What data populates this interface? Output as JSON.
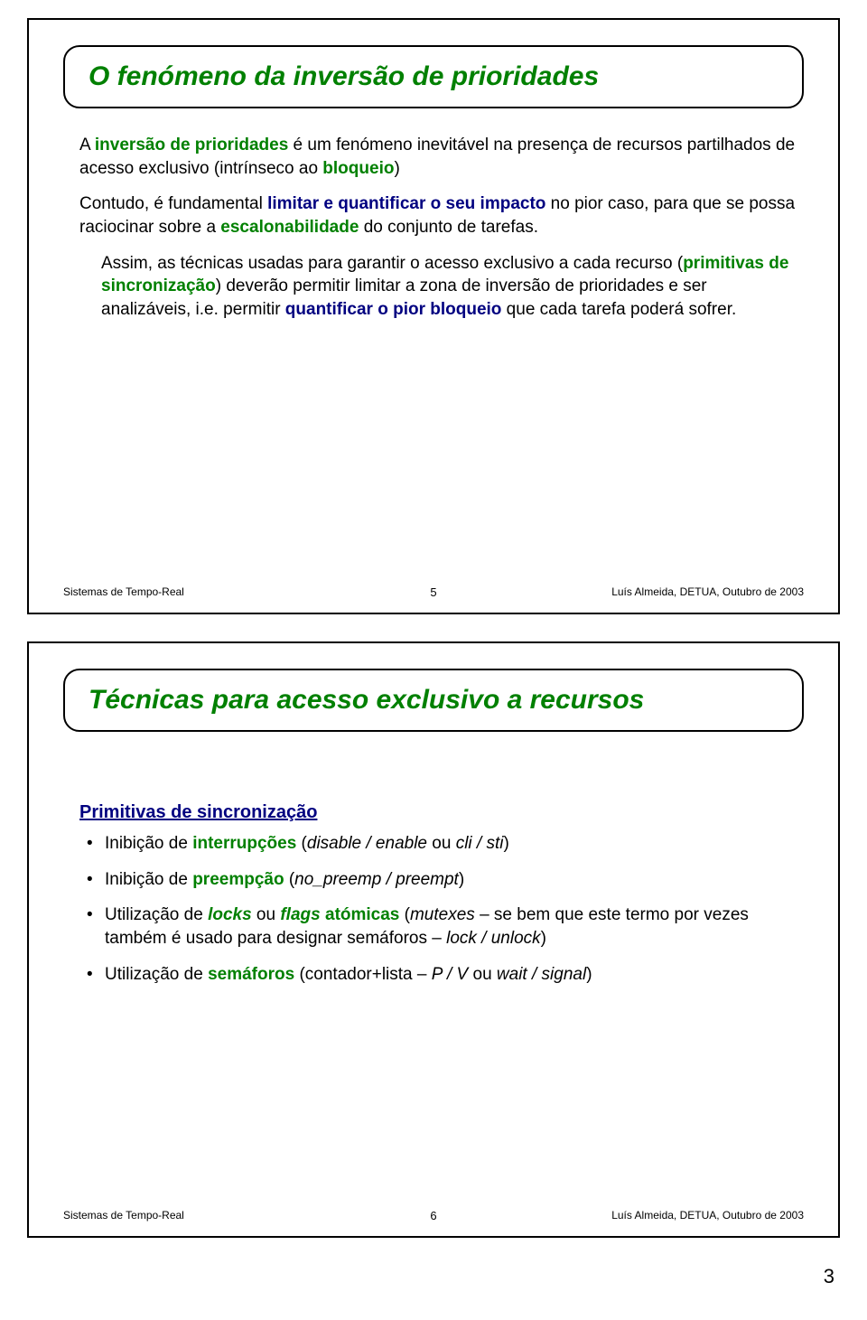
{
  "page_number": "3",
  "footer": {
    "left": "Sistemas de Tempo-Real",
    "right": "Luís Almeida, DETUA, Outubro de 2003"
  },
  "slide1": {
    "title": "O fenómeno da inversão de prioridades",
    "page": "5",
    "p1a": "A ",
    "p1b": "inversão de prioridades",
    "p1c": " é um fenómeno inevitável na presença de recursos partilhados de acesso exclusivo (intrínseco ao ",
    "p1d": "bloqueio",
    "p1e": ")",
    "p2a": "Contudo, é fundamental ",
    "p2b": "limitar e quantificar o seu impacto",
    "p2c": " no pior caso, para que se possa raciocinar sobre a ",
    "p2d": "escalonabilidade",
    "p2e": " do conjunto de tarefas.",
    "p3a": "Assim, as técnicas usadas para garantir o acesso exclusivo a cada recurso (",
    "p3b": "primitivas de sincronização",
    "p3c": ") deverão permitir limitar a zona de inversão de prioridades e ser analizáveis, i.e. permitir ",
    "p3d": "quantificar o pior bloqueio",
    "p3e": " que cada tarefa poderá sofrer."
  },
  "slide2": {
    "title": "Técnicas para acesso exclusivo a recursos",
    "page": "6",
    "subhead": "Primitivas de sincronização",
    "b1a": "Inibição de ",
    "b1b": "interrupções",
    "b1c": " (",
    "b1d": "disable / enable",
    "b1e": " ou ",
    "b1f": "cli / sti",
    "b1g": ")",
    "b2a": "Inibição de ",
    "b2b": "preempção",
    "b2c": " (",
    "b2d": "no_preemp / preempt",
    "b2e": ")",
    "b3a": "Utilização de ",
    "b3b": "locks",
    "b3c": " ou ",
    "b3d": "flags",
    "b3e": " atómicas",
    "b3f": " (",
    "b3g": "mutexes",
    "b3h": " – se bem que este termo por vezes também é usado para designar semáforos – ",
    "b3i": "lock / unlock",
    "b3j": ")",
    "b4a": "Utilização de ",
    "b4b": "semáforos",
    "b4c": " (contador+lista – ",
    "b4d": "P / V",
    "b4e": " ou ",
    "b4f": "wait / signal",
    "b4g": ")"
  }
}
